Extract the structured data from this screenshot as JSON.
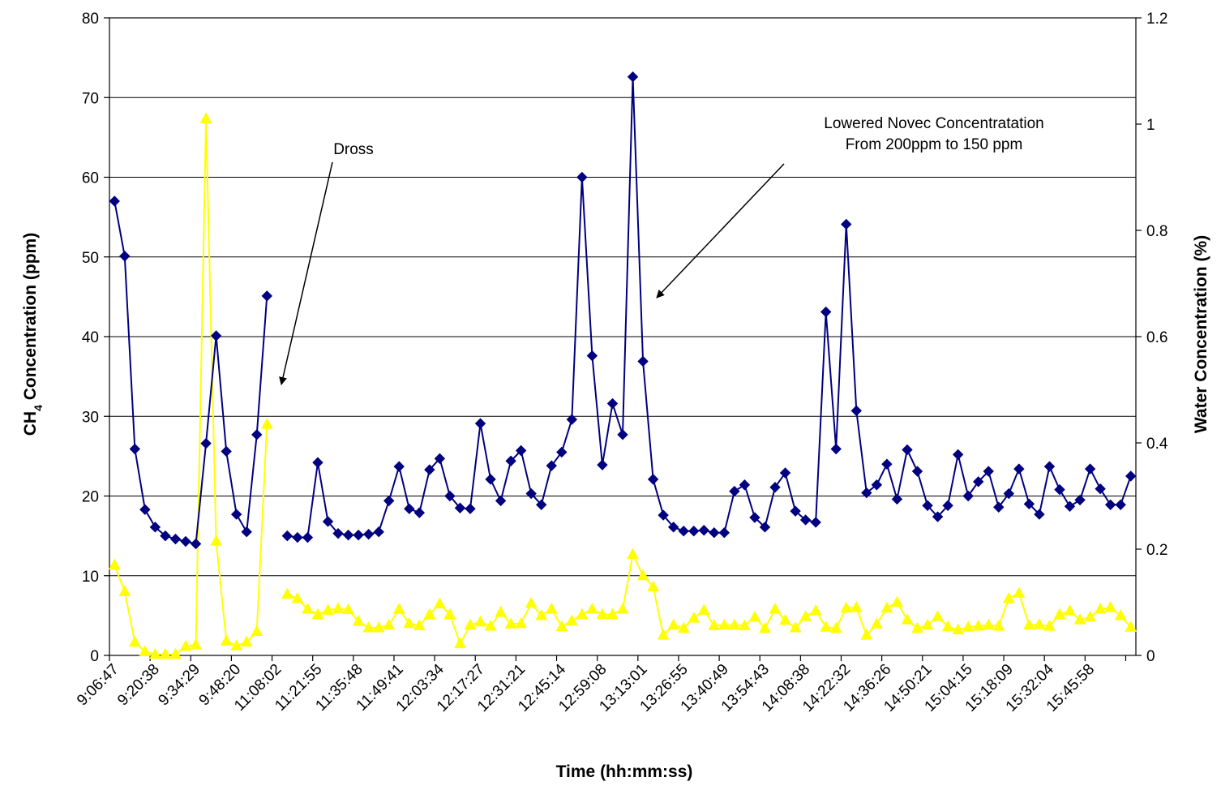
{
  "chart_data": {
    "type": "line",
    "xlabel": "Time (hh:mm:ss)",
    "ylabel_left": {
      "main": "CH",
      "sub": "4",
      "rest": " Concentration (ppm)"
    },
    "ylabel_right": "Water Concentration (%)",
    "ylim_left": [
      0,
      80
    ],
    "ylim_right": [
      0,
      1.2
    ],
    "yticks_left": [
      "0",
      "10",
      "20",
      "30",
      "40",
      "50",
      "60",
      "70",
      "80"
    ],
    "yticks_right": [
      "0",
      "0.2",
      "0.4",
      "0.6",
      "0.8",
      "1",
      "1.2"
    ],
    "grid": "horizontal",
    "x_tick_labels": [
      "9:06:47",
      "9:20:38",
      "9:34:29",
      "9:48:20",
      "11:08:02",
      "11:21:55",
      "11:35:48",
      "11:49:41",
      "12:03:34",
      "12:17:27",
      "12:31:21",
      "12:45:14",
      "12:59:08",
      "13:13:01",
      "13:26:55",
      "13:40:49",
      "13:54:43",
      "14:08:38",
      "14:22:32",
      "14:36:26",
      "14:50:21",
      "15:04:15",
      "15:18:09",
      "15:32:04",
      "15:45:58"
    ],
    "series": [
      {
        "name": "",
        "axis": "left",
        "color": "#000080",
        "marker": "diamond",
        "values": [
          57,
          50.1,
          25.9,
          18.3,
          16.1,
          15.0,
          14.6,
          14.3,
          14.0,
          26.6,
          40.1,
          25.6,
          17.7,
          15.5,
          27.7,
          45.1,
          null,
          15.0,
          14.8,
          14.8,
          24.2,
          16.8,
          15.3,
          15.1,
          15.1,
          15.2,
          15.5,
          19.4,
          23.7,
          18.4,
          17.9,
          23.3,
          24.7,
          20.0,
          18.5,
          18.4,
          29.1,
          22.1,
          19.4,
          24.4,
          25.7,
          20.3,
          18.9,
          23.8,
          25.5,
          29.6,
          60.0,
          37.6,
          23.9,
          31.6,
          27.7,
          72.6,
          36.9,
          22.1,
          17.6,
          16.1,
          15.6,
          15.6,
          15.7,
          15.4,
          15.4,
          20.6,
          21.4,
          17.3,
          16.1,
          21.1,
          22.9,
          18.1,
          17.0,
          16.7,
          43.1,
          25.9,
          54.1,
          30.7,
          20.4,
          21.4,
          24.0,
          19.6,
          25.8,
          23.1,
          18.8,
          17.4,
          18.8,
          25.2,
          20.0,
          21.8,
          23.1,
          18.6,
          20.3,
          23.4,
          19.0,
          17.7,
          23.7,
          20.8,
          18.7,
          19.5,
          23.4,
          20.9,
          18.9,
          18.9,
          22.5
        ]
      },
      {
        "name": "",
        "axis": "right",
        "color": "#ffff00",
        "marker": "triangle",
        "values": [
          0.17,
          0.12,
          0.025,
          0.007,
          0.002,
          0.002,
          0.002,
          0.017,
          0.02,
          1.01,
          0.215,
          0.027,
          0.018,
          0.025,
          0.045,
          0.435,
          null,
          0.115,
          0.107,
          0.087,
          0.077,
          0.085,
          0.088,
          0.086,
          0.064,
          0.052,
          0.052,
          0.057,
          0.087,
          0.06,
          0.056,
          0.077,
          0.097,
          0.077,
          0.022,
          0.057,
          0.063,
          0.055,
          0.081,
          0.059,
          0.06,
          0.098,
          0.075,
          0.087,
          0.054,
          0.065,
          0.077,
          0.087,
          0.077,
          0.077,
          0.087,
          0.19,
          0.15,
          0.129,
          0.038,
          0.057,
          0.051,
          0.07,
          0.085,
          0.056,
          0.057,
          0.057,
          0.056,
          0.072,
          0.051,
          0.087,
          0.066,
          0.052,
          0.073,
          0.084,
          0.053,
          0.051,
          0.089,
          0.09,
          0.038,
          0.059,
          0.089,
          0.1,
          0.067,
          0.051,
          0.057,
          0.073,
          0.054,
          0.048,
          0.053,
          0.055,
          0.057,
          0.055,
          0.107,
          0.117,
          0.057,
          0.058,
          0.055,
          0.077,
          0.084,
          0.067,
          0.072,
          0.087,
          0.09,
          0.075,
          0.053
        ]
      }
    ],
    "annotations": [
      {
        "lines": [
          "Dross"
        ]
      },
      {
        "lines": [
          "Lowered Novec Concentratation",
          "From 200ppm to 150 ppm"
        ]
      }
    ]
  }
}
